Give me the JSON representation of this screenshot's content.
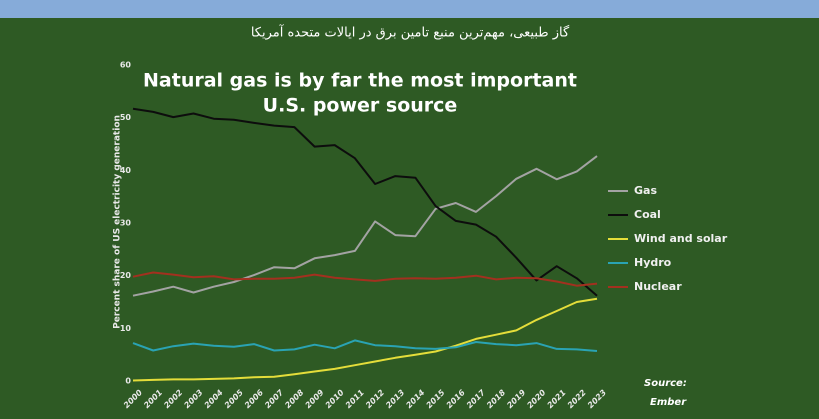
{
  "caption": "گاز طبیعی، مهم‌ترین منبع تامین برق در ایالات متحده آمریکا",
  "chart_data": {
    "type": "line",
    "title": [
      "Natural gas is by far the most important",
      "U.S. power source"
    ],
    "ylabel": "Percent share of US electricity generation",
    "source": [
      "Source:",
      "Ember"
    ],
    "categories": [
      "2000",
      "2001",
      "2002",
      "2003",
      "2004",
      "2005",
      "2006",
      "2007",
      "2008",
      "2009",
      "2010",
      "2011",
      "2012",
      "2013",
      "2014",
      "2015",
      "2016",
      "2017",
      "2018",
      "2019",
      "2020",
      "2021",
      "2022",
      "2023"
    ],
    "ylim": [
      0,
      60
    ],
    "yticks": [
      0,
      10,
      20,
      30,
      40,
      50,
      60
    ],
    "series": [
      {
        "name": "Gas",
        "color": "#a3a3a3",
        "values": [
          16.2,
          17,
          17.9,
          16.8,
          17.9,
          18.8,
          20.1,
          21.6,
          21.4,
          23.3,
          23.9,
          24.7,
          30.3,
          27.7,
          27.5,
          32.7,
          33.8,
          32.1,
          35.1,
          38.4,
          40.3,
          38.3,
          39.8,
          42.7
        ]
      },
      {
        "name": "Coal",
        "color": "#0d0d0d",
        "values": [
          51.7,
          51.1,
          50.1,
          50.8,
          49.8,
          49.6,
          49,
          48.5,
          48.2,
          44.5,
          44.8,
          42.3,
          37.4,
          38.9,
          38.6,
          33.2,
          30.4,
          29.7,
          27.4,
          23.4,
          19.1,
          21.8,
          19.5,
          16.2
        ]
      },
      {
        "name": "Wind and solar",
        "color": "#e4dd3a",
        "values": [
          0.1,
          0.2,
          0.3,
          0.3,
          0.4,
          0.5,
          0.7,
          0.8,
          1.3,
          1.8,
          2.3,
          3,
          3.7,
          4.4,
          5,
          5.6,
          6.7,
          8,
          8.8,
          9.6,
          11.6,
          13.3,
          15,
          15.6
        ]
      },
      {
        "name": "Hydro",
        "color": "#2aa3b3",
        "values": [
          7.2,
          5.8,
          6.6,
          7.1,
          6.7,
          6.5,
          7,
          5.8,
          6,
          6.9,
          6.2,
          7.7,
          6.8,
          6.6,
          6.2,
          6.1,
          6.4,
          7.4,
          7,
          6.8,
          7.2,
          6.1,
          6,
          5.7
        ]
      },
      {
        "name": "Nuclear",
        "color": "#a3301f",
        "values": [
          19.8,
          20.6,
          20.2,
          19.7,
          19.9,
          19.3,
          19.4,
          19.4,
          19.6,
          20.2,
          19.6,
          19.3,
          19,
          19.4,
          19.5,
          19.4,
          19.6,
          20,
          19.3,
          19.6,
          19.5,
          18.9,
          18.1,
          18.5
        ]
      }
    ]
  }
}
